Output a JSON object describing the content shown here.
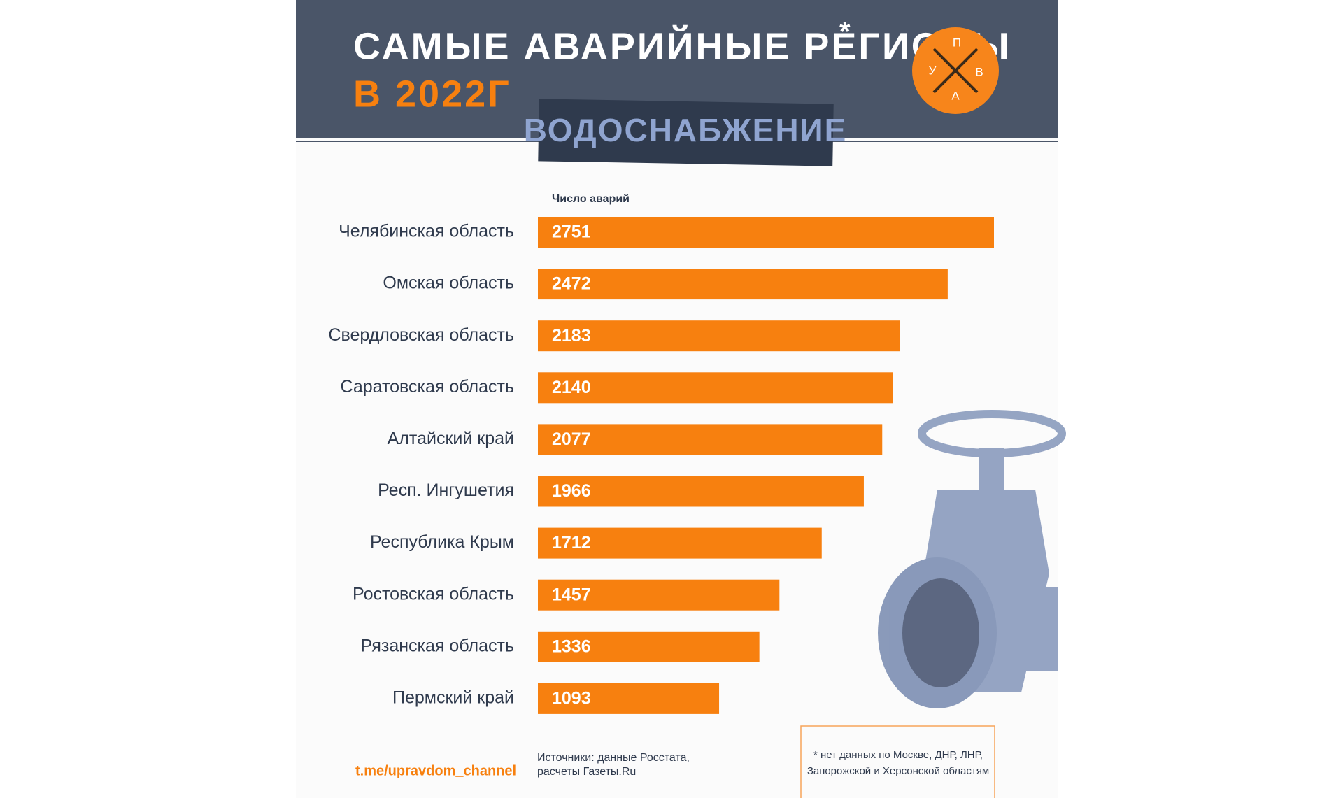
{
  "chart_data": {
    "type": "bar",
    "orientation": "horizontal",
    "title": "САМЫЕ АВАРИЙНЫЕ РЕГИОНЫ",
    "title_mark": "*",
    "subtitle": "В 2022Г",
    "section": "ВОДОСНАБЖЕНИЕ",
    "value_axis_label": "Число аварий",
    "categories": [
      "Челябинская область",
      "Омская область",
      "Свердловская область",
      "Саратовская область",
      "Алтайский край",
      "Респ. Ингушетия",
      "Республика Крым",
      "Ростовская область",
      "Рязанская область",
      "Пермский край"
    ],
    "values": [
      2751,
      2472,
      2183,
      2140,
      2077,
      1966,
      1712,
      1457,
      1336,
      1093
    ],
    "color": "#f7800f",
    "logo_letters": [
      "П",
      "В",
      "А",
      "У"
    ],
    "link": "t.me/upravdom_channel",
    "sources": [
      "Источники: данные Росстата,",
      "расчеты Газеты.Ru"
    ],
    "footnote": [
      "* нет данных по Москве, ДНР, ЛНР,",
      "Запорожской и Херсонской областям"
    ]
  }
}
